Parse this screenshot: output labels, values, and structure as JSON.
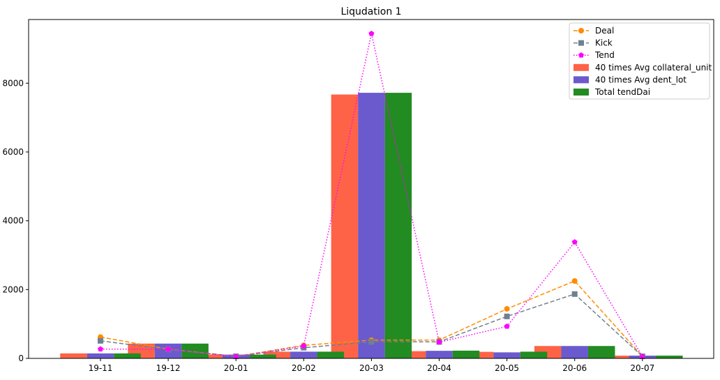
{
  "chart_data": {
    "type": "bar",
    "title": "Liqudation 1",
    "xlabel": "",
    "ylabel": "",
    "categories": [
      "19-11",
      "19-12",
      "20-01",
      "20-02",
      "20-03",
      "20-04",
      "20-05",
      "20-06",
      "20-07"
    ],
    "ylim": [
      0,
      9850
    ],
    "yticks": [
      0,
      2000,
      4000,
      6000,
      8000
    ],
    "grid": false,
    "legend_position": "top-right",
    "bar_series": [
      {
        "name": "40 times Avg collateral_unit",
        "color": "#ff6347",
        "values": [
          145,
          430,
          110,
          195,
          7670,
          210,
          190,
          360,
          80
        ]
      },
      {
        "name": "40 times Avg dent_lot",
        "color": "#6a5acd",
        "values": [
          145,
          430,
          110,
          195,
          7720,
          220,
          175,
          360,
          80
        ]
      },
      {
        "name": "Total tendDai",
        "color": "#228b22",
        "values": [
          145,
          430,
          110,
          195,
          7720,
          225,
          195,
          360,
          80
        ]
      }
    ],
    "line_series": [
      {
        "name": "Deal",
        "color": "#ff8c00",
        "style": "dashed",
        "marker": "circle",
        "values": [
          620,
          270,
          60,
          380,
          530,
          530,
          1440,
          2250,
          60
        ]
      },
      {
        "name": "Kick",
        "color": "#708090",
        "style": "dashed",
        "marker": "square",
        "values": [
          510,
          260,
          60,
          310,
          480,
          480,
          1220,
          1870,
          60
        ]
      },
      {
        "name": "Tend",
        "color": "#ff00ff",
        "style": "dotted",
        "marker": "pentagon",
        "values": [
          270,
          270,
          50,
          360,
          9440,
          470,
          930,
          3380,
          50
        ]
      }
    ]
  }
}
